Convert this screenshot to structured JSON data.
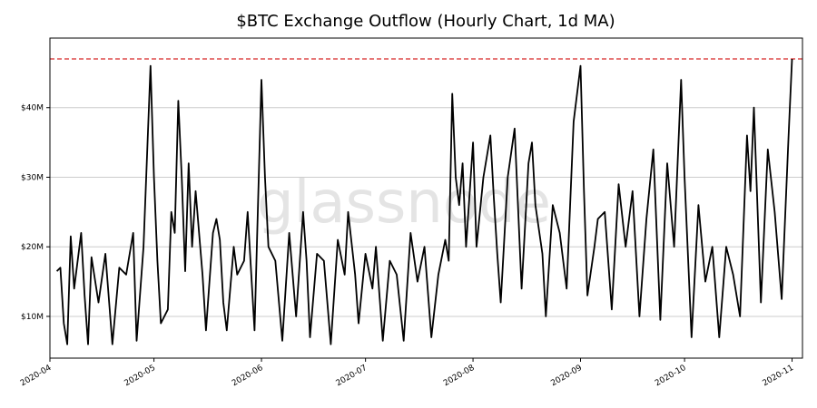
{
  "chart_data": {
    "type": "line",
    "title": "$BTC Exchange Outflow (Hourly Chart, 1d MA)",
    "xlabel": "",
    "ylabel": "",
    "watermark": "glassnode",
    "x_range": [
      "2020-04-01",
      "2020-11-04"
    ],
    "ylim": [
      4,
      50
    ],
    "y_unit": "$M",
    "y_ticks": [
      {
        "value": 10,
        "label": "$10M"
      },
      {
        "value": 20,
        "label": "$20M"
      },
      {
        "value": 30,
        "label": "$30M"
      },
      {
        "value": 40,
        "label": "$40M"
      }
    ],
    "x_ticks": [
      {
        "date": "2020-04-01",
        "label": "2020-04"
      },
      {
        "date": "2020-05-01",
        "label": "2020-05"
      },
      {
        "date": "2020-06-01",
        "label": "2020-06"
      },
      {
        "date": "2020-07-01",
        "label": "2020-07"
      },
      {
        "date": "2020-08-01",
        "label": "2020-08"
      },
      {
        "date": "2020-09-01",
        "label": "2020-09"
      },
      {
        "date": "2020-10-01",
        "label": "2020-10"
      },
      {
        "date": "2020-11-01",
        "label": "2020-11"
      }
    ],
    "grid": "horizontal",
    "reference_line": {
      "value": 47,
      "color": "#d62728",
      "style": "dashed"
    },
    "series": [
      {
        "color": "#000000",
        "points": [
          [
            "2020-04-03",
            16.5
          ],
          [
            "2020-04-04",
            17.0
          ],
          [
            "2020-04-05",
            9.0
          ],
          [
            "2020-04-06",
            6.0
          ],
          [
            "2020-04-07",
            21.5
          ],
          [
            "2020-04-08",
            14.0
          ],
          [
            "2020-04-10",
            22.0
          ],
          [
            "2020-04-11",
            13.0
          ],
          [
            "2020-04-12",
            6.0
          ],
          [
            "2020-04-13",
            18.5
          ],
          [
            "2020-04-15",
            12.0
          ],
          [
            "2020-04-17",
            19.0
          ],
          [
            "2020-04-19",
            6.0
          ],
          [
            "2020-04-21",
            17.0
          ],
          [
            "2020-04-23",
            16.0
          ],
          [
            "2020-04-25",
            22.0
          ],
          [
            "2020-04-26",
            6.5
          ],
          [
            "2020-04-28",
            20.0
          ],
          [
            "2020-04-30",
            46.0
          ],
          [
            "2020-05-01",
            30.0
          ],
          [
            "2020-05-02",
            18.0
          ],
          [
            "2020-05-03",
            9.0
          ],
          [
            "2020-05-05",
            11.0
          ],
          [
            "2020-05-06",
            25.0
          ],
          [
            "2020-05-07",
            22.0
          ],
          [
            "2020-05-08",
            41.0
          ],
          [
            "2020-05-09",
            30.0
          ],
          [
            "2020-05-10",
            16.5
          ],
          [
            "2020-05-11",
            32.0
          ],
          [
            "2020-05-12",
            20.0
          ],
          [
            "2020-05-13",
            28.0
          ],
          [
            "2020-05-14",
            22.0
          ],
          [
            "2020-05-15",
            16.0
          ],
          [
            "2020-05-16",
            8.0
          ],
          [
            "2020-05-18",
            22.0
          ],
          [
            "2020-05-19",
            24.0
          ],
          [
            "2020-05-20",
            21.0
          ],
          [
            "2020-05-21",
            12.0
          ],
          [
            "2020-05-22",
            8.0
          ],
          [
            "2020-05-24",
            20.0
          ],
          [
            "2020-05-25",
            16.0
          ],
          [
            "2020-05-27",
            18.0
          ],
          [
            "2020-05-28",
            25.0
          ],
          [
            "2020-05-30",
            8.0
          ],
          [
            "2020-06-01",
            44.0
          ],
          [
            "2020-06-02",
            30.0
          ],
          [
            "2020-06-03",
            20.0
          ],
          [
            "2020-06-05",
            18.0
          ],
          [
            "2020-06-07",
            6.5
          ],
          [
            "2020-06-09",
            22.0
          ],
          [
            "2020-06-11",
            10.0
          ],
          [
            "2020-06-13",
            25.0
          ],
          [
            "2020-06-14",
            18.0
          ],
          [
            "2020-06-15",
            7.0
          ],
          [
            "2020-06-17",
            19.0
          ],
          [
            "2020-06-19",
            18.0
          ],
          [
            "2020-06-21",
            6.0
          ],
          [
            "2020-06-23",
            21.0
          ],
          [
            "2020-06-25",
            16.0
          ],
          [
            "2020-06-26",
            25.0
          ],
          [
            "2020-06-28",
            16.0
          ],
          [
            "2020-06-29",
            9.0
          ],
          [
            "2020-07-01",
            19.0
          ],
          [
            "2020-07-03",
            14.0
          ],
          [
            "2020-07-04",
            20.0
          ],
          [
            "2020-07-06",
            6.5
          ],
          [
            "2020-07-08",
            18.0
          ],
          [
            "2020-07-10",
            16.0
          ],
          [
            "2020-07-12",
            6.5
          ],
          [
            "2020-07-14",
            22.0
          ],
          [
            "2020-07-16",
            15.0
          ],
          [
            "2020-07-18",
            20.0
          ],
          [
            "2020-07-20",
            7.0
          ],
          [
            "2020-07-22",
            16.0
          ],
          [
            "2020-07-24",
            21.0
          ],
          [
            "2020-07-25",
            18.0
          ],
          [
            "2020-07-26",
            42.0
          ],
          [
            "2020-07-27",
            30.0
          ],
          [
            "2020-07-28",
            26.0
          ],
          [
            "2020-07-29",
            32.0
          ],
          [
            "2020-07-30",
            20.0
          ],
          [
            "2020-08-01",
            35.0
          ],
          [
            "2020-08-02",
            20.0
          ],
          [
            "2020-08-04",
            30.0
          ],
          [
            "2020-08-06",
            36.0
          ],
          [
            "2020-08-07",
            27.0
          ],
          [
            "2020-08-08",
            19.0
          ],
          [
            "2020-08-09",
            12.0
          ],
          [
            "2020-08-11",
            30.0
          ],
          [
            "2020-08-13",
            37.0
          ],
          [
            "2020-08-15",
            14.0
          ],
          [
            "2020-08-17",
            32.0
          ],
          [
            "2020-08-18",
            35.0
          ],
          [
            "2020-08-19",
            26.0
          ],
          [
            "2020-08-21",
            19.0
          ],
          [
            "2020-08-22",
            10.0
          ],
          [
            "2020-08-24",
            26.0
          ],
          [
            "2020-08-26",
            22.0
          ],
          [
            "2020-08-28",
            14.0
          ],
          [
            "2020-08-30",
            38.0
          ],
          [
            "2020-09-01",
            46.0
          ],
          [
            "2020-09-02",
            28.0
          ],
          [
            "2020-09-03",
            13.0
          ],
          [
            "2020-09-05",
            20.0
          ],
          [
            "2020-09-06",
            24.0
          ],
          [
            "2020-09-08",
            25.0
          ],
          [
            "2020-09-10",
            11.0
          ],
          [
            "2020-09-12",
            29.0
          ],
          [
            "2020-09-14",
            20.0
          ],
          [
            "2020-09-16",
            28.0
          ],
          [
            "2020-09-18",
            10.0
          ],
          [
            "2020-09-20",
            24.0
          ],
          [
            "2020-09-22",
            34.0
          ],
          [
            "2020-09-24",
            9.5
          ],
          [
            "2020-09-26",
            32.0
          ],
          [
            "2020-09-28",
            20.0
          ],
          [
            "2020-09-30",
            44.0
          ],
          [
            "2020-10-01",
            30.0
          ],
          [
            "2020-10-03",
            7.0
          ],
          [
            "2020-10-05",
            26.0
          ],
          [
            "2020-10-07",
            15.0
          ],
          [
            "2020-10-09",
            20.0
          ],
          [
            "2020-10-11",
            7.0
          ],
          [
            "2020-10-13",
            20.0
          ],
          [
            "2020-10-15",
            16.0
          ],
          [
            "2020-10-17",
            10.0
          ],
          [
            "2020-10-19",
            36.0
          ],
          [
            "2020-10-20",
            28.0
          ],
          [
            "2020-10-21",
            40.0
          ],
          [
            "2020-10-23",
            12.0
          ],
          [
            "2020-10-25",
            34.0
          ],
          [
            "2020-10-27",
            25.0
          ],
          [
            "2020-10-29",
            12.5
          ],
          [
            "2020-10-31",
            36.0
          ],
          [
            "2020-11-01",
            47.0
          ]
        ]
      }
    ]
  }
}
